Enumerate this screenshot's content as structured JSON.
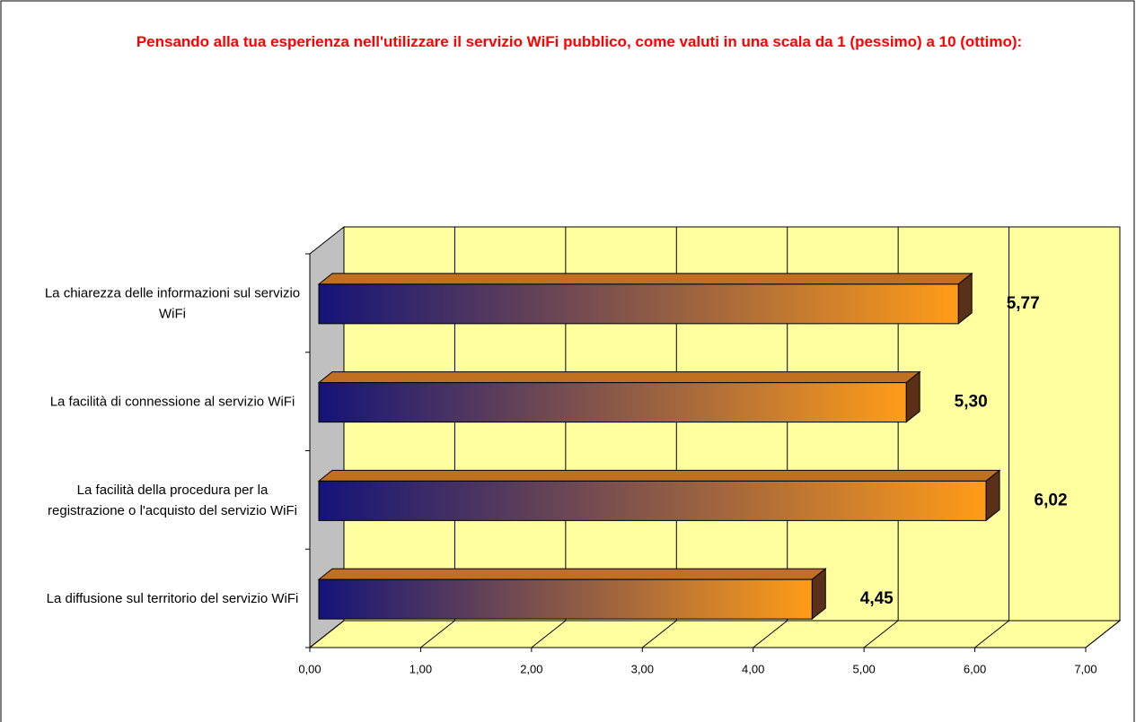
{
  "chart_data": {
    "type": "bar3d_horizontal",
    "title": "Pensando alla tua esperienza nell'utilizzare il servizio WiFi pubblico, come valuti in una scala da 1 (pessimo) a 10 (ottimo):",
    "categories": [
      "La chiarezza delle informazioni sul servizio WiFi",
      "La facilità di connessione al servizio WiFi",
      "La facilità della procedura per la registrazione o l'acquisto del servizio WiFi",
      "La diffusione sul territorio del servizio WiFi"
    ],
    "values": [
      5.77,
      5.3,
      6.02,
      4.45
    ],
    "value_labels": [
      "5,77",
      "5,30",
      "6,02",
      "4,45"
    ],
    "color_start": "#141478",
    "color_end": "#ff9c18",
    "xlim": [
      0,
      7
    ],
    "xticks": [
      {
        "value": 0,
        "label": "0,00"
      },
      {
        "value": 1,
        "label": "1,00"
      },
      {
        "value": 2,
        "label": "2,00"
      },
      {
        "value": 3,
        "label": "3,00"
      },
      {
        "value": 4,
        "label": "4,00"
      },
      {
        "value": 5,
        "label": "5,00"
      },
      {
        "value": 6,
        "label": "6,00"
      },
      {
        "value": 7,
        "label": "7,00"
      }
    ],
    "grid": true
  }
}
